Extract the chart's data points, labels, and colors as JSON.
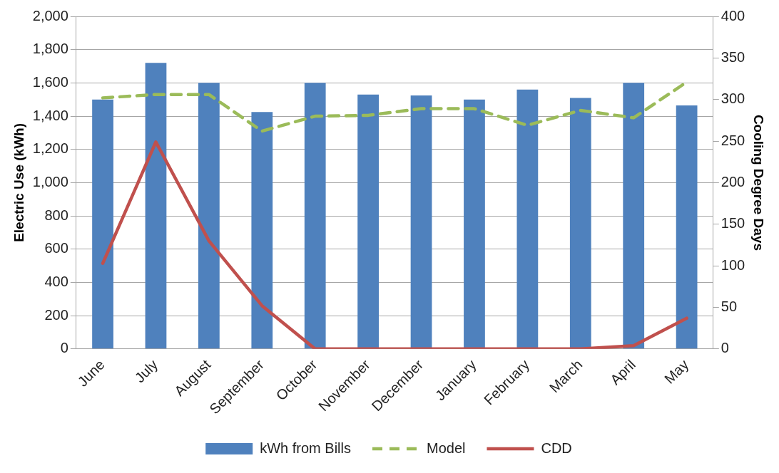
{
  "chart_data": {
    "type": "bar",
    "ylabel": "Electric Use (kWh)",
    "y2label": "Cooling Degree Days",
    "categories": [
      "June",
      "July",
      "August",
      "September",
      "October",
      "November",
      "December",
      "January",
      "February",
      "March",
      "April",
      "May"
    ],
    "series": [
      {
        "name": "kWh from Bills",
        "color": "#4f81bd",
        "values": [
          1500,
          1720,
          1600,
          1425,
          1600,
          1530,
          1525,
          1500,
          1560,
          1510,
          1600,
          1465
        ]
      },
      {
        "name": "Model",
        "type": "line",
        "color": "#9bbb59",
        "axis": "y2",
        "line_style": "dashed",
        "values": [
          302,
          306,
          306,
          262,
          280,
          281,
          289,
          289,
          269,
          287,
          278,
          321
        ]
      },
      {
        "name": "CDD",
        "type": "line",
        "color": "#c0504d",
        "axis": "y2",
        "line_style": "solid",
        "values": [
          103,
          249,
          130,
          52,
          0,
          0,
          0,
          0,
          0,
          0,
          4,
          37
        ]
      }
    ],
    "ylim": [
      0,
      2000
    ],
    "yticks": [
      0,
      200,
      400,
      600,
      800,
      {
        "value": 1000,
        "label": "1,000"
      },
      {
        "value": 1200,
        "label": "1,200"
      },
      {
        "value": 1400,
        "label": "1,400"
      },
      {
        "value": 1600,
        "label": "1,600"
      },
      {
        "value": 1800,
        "label": "1,800"
      },
      {
        "value": 2000,
        "label": "2,000"
      }
    ],
    "y2lim": [
      0,
      400
    ],
    "y2ticks": [
      0,
      50,
      100,
      150,
      200,
      250,
      300,
      350,
      400
    ],
    "grid": "y",
    "legend": "bottom",
    "marker": "none"
  }
}
